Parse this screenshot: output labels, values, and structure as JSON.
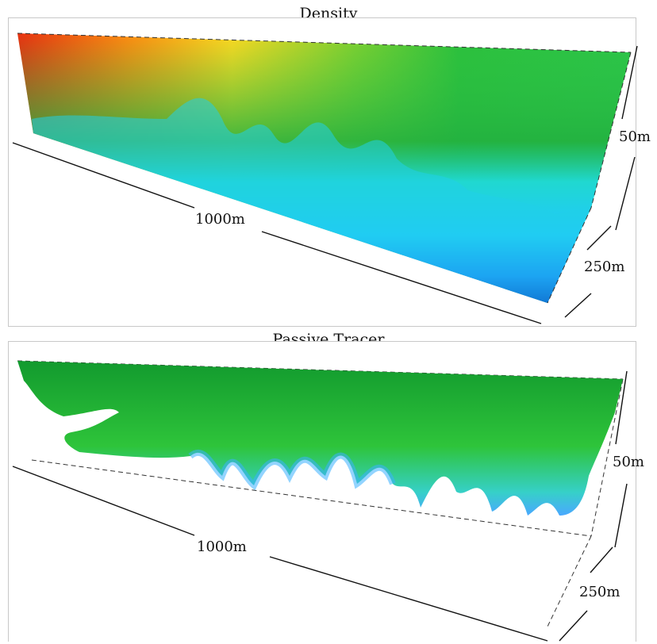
{
  "panels": [
    {
      "title": "Density",
      "labels": {
        "length": "1000m",
        "depth": "250m",
        "height": "50m"
      },
      "colors": [
        "#e82a10",
        "#ff7f00",
        "#ffe020",
        "#26c23a",
        "#1fa83a",
        "#20e0e8",
        "#1a8cff",
        "#0010c8"
      ]
    },
    {
      "title": "Passive Tracer",
      "labels": {
        "length": "1000m",
        "depth": "250m",
        "height": "50m"
      },
      "colors": [
        "#0f9a2c",
        "#2ec83a",
        "#30d8e0",
        "#3aa8ff",
        "#ffffff"
      ]
    }
  ]
}
